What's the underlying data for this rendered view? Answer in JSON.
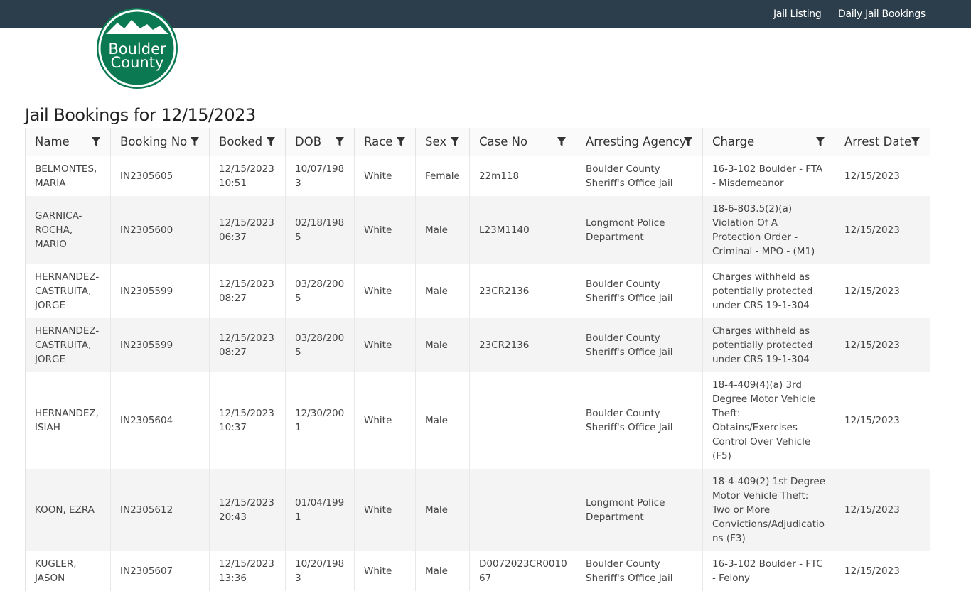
{
  "nav": {
    "links": [
      "Jail Listing",
      "Daily Jail Bookings"
    ]
  },
  "logo": {
    "lines": [
      "Boulder",
      "County"
    ]
  },
  "title": "Jail Bookings for 12/15/2023",
  "table": {
    "headers": [
      "Name",
      "Booking No",
      "Booked",
      "DOB",
      "Race",
      "Sex",
      "Case No",
      "Arresting Agency",
      "Charge",
      "Arrest Date"
    ],
    "rows": [
      [
        "BELMONTES, MARIA",
        "IN2305605",
        "12/15/2023 10:51",
        "10/07/1983",
        "White",
        "Female",
        "22m118",
        "Boulder County Sheriff's Office Jail",
        "16-3-102 Boulder - FTA - Misdemeanor",
        "12/15/2023"
      ],
      [
        "GARNICA-ROCHA, MARIO",
        "IN2305600",
        "12/15/2023 06:37",
        "02/18/1985",
        "White",
        "Male",
        "L23M1140",
        "Longmont Police Department",
        "18-6-803.5(2)(a) Violation Of A Protection Order - Criminal - MPO - (M1)",
        "12/15/2023"
      ],
      [
        "HERNANDEZ-CASTRUITA, JORGE",
        "IN2305599",
        "12/15/2023 08:27",
        "03/28/2005",
        "White",
        "Male",
        "23CR2136",
        "Boulder County Sheriff's Office Jail",
        "Charges withheld as potentially protected under CRS 19-1-304",
        "12/15/2023"
      ],
      [
        "HERNANDEZ-CASTRUITA, JORGE",
        "IN2305599",
        "12/15/2023 08:27",
        "03/28/2005",
        "White",
        "Male",
        "23CR2136",
        "Boulder County Sheriff's Office Jail",
        "Charges withheld as potentially protected under CRS 19-1-304",
        "12/15/2023"
      ],
      [
        "HERNANDEZ, ISIAH",
        "IN2305604",
        "12/15/2023 10:37",
        "12/30/2001",
        "White",
        "Male",
        null,
        "Boulder County Sheriff's Office Jail",
        "18-4-409(4)(a) 3rd Degree Motor Vehicle Theft: Obtains/Exercises Control Over Vehicle (F5)",
        "12/15/2023"
      ],
      [
        "KOON, EZRA",
        "IN2305612",
        "12/15/2023 20:43",
        "01/04/1991",
        "White",
        "Male",
        null,
        "Longmont Police Department",
        "18-4-409(2) 1st Degree Motor Vehicle Theft: Two or More Convictions/Adjudications (F3)",
        "12/15/2023"
      ],
      [
        "KUGLER, JASON",
        "IN2305607",
        "12/15/2023 13:36",
        "10/20/1983",
        "White",
        "Male",
        "D0072023CR001067",
        "Boulder County Sheriff's Office Jail",
        "16-3-102 Boulder - FTC - Felony",
        "12/15/2023"
      ]
    ]
  }
}
